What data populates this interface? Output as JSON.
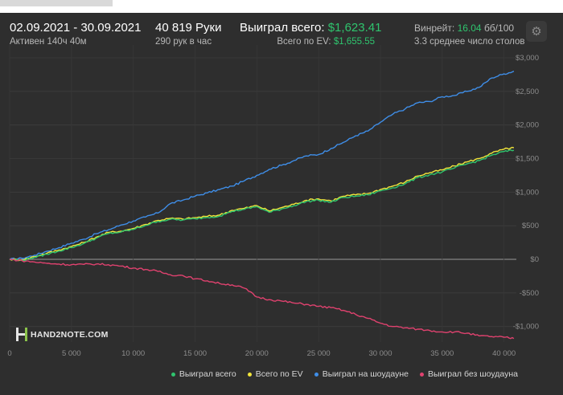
{
  "header": {
    "date_range": "02.09.2021 - 30.09.2021",
    "active_time": "Активен 140ч 40м",
    "hands": "40 819 Руки",
    "hands_per_hour": "290 рук в час",
    "won_total_label": "Выиграл всего:",
    "won_total_value": "$1,623.41",
    "ev_label": "Всего по EV:",
    "ev_value": "$1,655.55",
    "winrate_label": "Винрейт:",
    "winrate_value": "16.04",
    "winrate_suffix": "бб/100",
    "avg_tables": "3.3 среднее число столов",
    "gear_icon": "gear-icon"
  },
  "logo": {
    "text": "HAND2NOTE.COM"
  },
  "legend": [
    {
      "label": "Выиграл всего",
      "color": "#2fc46e"
    },
    {
      "label": "Всего по EV",
      "color": "#f3e63b"
    },
    {
      "label": "Выиграл на шоудауне",
      "color": "#3f8ee8"
    },
    {
      "label": "Выиграл без шоудауна",
      "color": "#e0426f"
    }
  ],
  "chart_data": {
    "type": "line",
    "title": "",
    "xlabel": "",
    "ylabel": "",
    "xlim": [
      0,
      41000
    ],
    "ylim": [
      -1300,
      3000
    ],
    "x_ticks": [
      0,
      5000,
      10000,
      15000,
      20000,
      25000,
      30000,
      35000,
      40000
    ],
    "x_tick_labels": [
      "0",
      "5 000",
      "10 000",
      "15 000",
      "20 000",
      "25 000",
      "30 000",
      "35 000",
      "40 000"
    ],
    "y_ticks": [
      3000,
      2500,
      2000,
      1500,
      1000,
      500,
      0,
      -500,
      -1000
    ],
    "y_tick_labels": [
      "$3,000",
      "$2,500",
      "$2,000",
      "$1,500",
      "$1,000",
      "$500",
      "$0",
      "-$500",
      "-$1,000"
    ],
    "grid": true,
    "series": [
      {
        "name": "Выиграл на шоудауне",
        "color": "#3f8ee8",
        "points": [
          [
            0,
            0
          ],
          [
            1000,
            15
          ],
          [
            2000,
            60
          ],
          [
            3000,
            120
          ],
          [
            4000,
            175
          ],
          [
            5000,
            240
          ],
          [
            6000,
            300
          ],
          [
            7000,
            380
          ],
          [
            8000,
            440
          ],
          [
            9000,
            510
          ],
          [
            10000,
            570
          ],
          [
            11000,
            630
          ],
          [
            12000,
            690
          ],
          [
            13000,
            830
          ],
          [
            14000,
            880
          ],
          [
            15000,
            940
          ],
          [
            16000,
            990
          ],
          [
            17000,
            1040
          ],
          [
            18000,
            1090
          ],
          [
            19000,
            1170
          ],
          [
            20000,
            1250
          ],
          [
            21000,
            1340
          ],
          [
            22000,
            1400
          ],
          [
            23000,
            1470
          ],
          [
            24000,
            1540
          ],
          [
            25000,
            1560
          ],
          [
            26000,
            1650
          ],
          [
            27000,
            1740
          ],
          [
            28000,
            1840
          ],
          [
            29000,
            1910
          ],
          [
            30000,
            2040
          ],
          [
            31000,
            2160
          ],
          [
            32000,
            2240
          ],
          [
            33000,
            2330
          ],
          [
            34000,
            2350
          ],
          [
            35000,
            2420
          ],
          [
            36000,
            2440
          ],
          [
            37000,
            2500
          ],
          [
            38000,
            2560
          ],
          [
            39000,
            2700
          ],
          [
            40000,
            2760
          ],
          [
            40800,
            2800
          ]
        ]
      },
      {
        "name": "Всего по EV",
        "color": "#f3e63b",
        "points": [
          [
            0,
            0
          ],
          [
            1000,
            -10
          ],
          [
            2000,
            40
          ],
          [
            3000,
            90
          ],
          [
            4000,
            140
          ],
          [
            5000,
            190
          ],
          [
            6000,
            250
          ],
          [
            7000,
            330
          ],
          [
            8000,
            400
          ],
          [
            9000,
            420
          ],
          [
            10000,
            460
          ],
          [
            11000,
            520
          ],
          [
            12000,
            580
          ],
          [
            13000,
            610
          ],
          [
            14000,
            600
          ],
          [
            15000,
            620
          ],
          [
            16000,
            640
          ],
          [
            17000,
            660
          ],
          [
            18000,
            730
          ],
          [
            19000,
            760
          ],
          [
            20000,
            800
          ],
          [
            21000,
            720
          ],
          [
            22000,
            770
          ],
          [
            23000,
            820
          ],
          [
            24000,
            880
          ],
          [
            25000,
            900
          ],
          [
            26000,
            870
          ],
          [
            27000,
            940
          ],
          [
            28000,
            960
          ],
          [
            29000,
            980
          ],
          [
            30000,
            1040
          ],
          [
            31000,
            1090
          ],
          [
            32000,
            1150
          ],
          [
            33000,
            1240
          ],
          [
            34000,
            1290
          ],
          [
            35000,
            1330
          ],
          [
            36000,
            1390
          ],
          [
            37000,
            1450
          ],
          [
            38000,
            1500
          ],
          [
            39000,
            1580
          ],
          [
            40000,
            1640
          ],
          [
            40800,
            1660
          ]
        ]
      },
      {
        "name": "Выиграл всего",
        "color": "#2fc46e",
        "points": [
          [
            0,
            0
          ],
          [
            1000,
            -15
          ],
          [
            2000,
            30
          ],
          [
            3000,
            75
          ],
          [
            4000,
            125
          ],
          [
            5000,
            175
          ],
          [
            6000,
            235
          ],
          [
            7000,
            315
          ],
          [
            8000,
            385
          ],
          [
            9000,
            405
          ],
          [
            10000,
            445
          ],
          [
            11000,
            505
          ],
          [
            12000,
            565
          ],
          [
            13000,
            595
          ],
          [
            14000,
            585
          ],
          [
            15000,
            605
          ],
          [
            16000,
            625
          ],
          [
            17000,
            645
          ],
          [
            18000,
            715
          ],
          [
            19000,
            745
          ],
          [
            20000,
            785
          ],
          [
            21000,
            700
          ],
          [
            22000,
            750
          ],
          [
            23000,
            800
          ],
          [
            24000,
            860
          ],
          [
            25000,
            880
          ],
          [
            26000,
            850
          ],
          [
            27000,
            920
          ],
          [
            28000,
            940
          ],
          [
            29000,
            960
          ],
          [
            30000,
            1020
          ],
          [
            31000,
            1065
          ],
          [
            32000,
            1125
          ],
          [
            33000,
            1215
          ],
          [
            34000,
            1260
          ],
          [
            35000,
            1300
          ],
          [
            36000,
            1360
          ],
          [
            37000,
            1420
          ],
          [
            38000,
            1470
          ],
          [
            39000,
            1550
          ],
          [
            40000,
            1605
          ],
          [
            40800,
            1623
          ]
        ]
      },
      {
        "name": "Выиграл без шоудауна",
        "color": "#e0426f",
        "points": [
          [
            0,
            0
          ],
          [
            1000,
            -20
          ],
          [
            2000,
            -40
          ],
          [
            3000,
            -60
          ],
          [
            4000,
            -70
          ],
          [
            5000,
            -80
          ],
          [
            6000,
            -75
          ],
          [
            7000,
            -70
          ],
          [
            8000,
            -80
          ],
          [
            9000,
            -100
          ],
          [
            10000,
            -130
          ],
          [
            11000,
            -150
          ],
          [
            12000,
            -180
          ],
          [
            13000,
            -230
          ],
          [
            14000,
            -240
          ],
          [
            15000,
            -290
          ],
          [
            16000,
            -320
          ],
          [
            17000,
            -360
          ],
          [
            18000,
            -380
          ],
          [
            19000,
            -430
          ],
          [
            20000,
            -560
          ],
          [
            21000,
            -600
          ],
          [
            22000,
            -620
          ],
          [
            23000,
            -650
          ],
          [
            24000,
            -670
          ],
          [
            25000,
            -700
          ],
          [
            26000,
            -720
          ],
          [
            27000,
            -760
          ],
          [
            28000,
            -820
          ],
          [
            29000,
            -880
          ],
          [
            30000,
            -950
          ],
          [
            31000,
            -1000
          ],
          [
            32000,
            -1020
          ],
          [
            33000,
            -1040
          ],
          [
            34000,
            -1060
          ],
          [
            35000,
            -1080
          ],
          [
            36000,
            -1080
          ],
          [
            37000,
            -1100
          ],
          [
            38000,
            -1140
          ],
          [
            39000,
            -1150
          ],
          [
            40000,
            -1160
          ],
          [
            40800,
            -1180
          ]
        ]
      }
    ]
  }
}
